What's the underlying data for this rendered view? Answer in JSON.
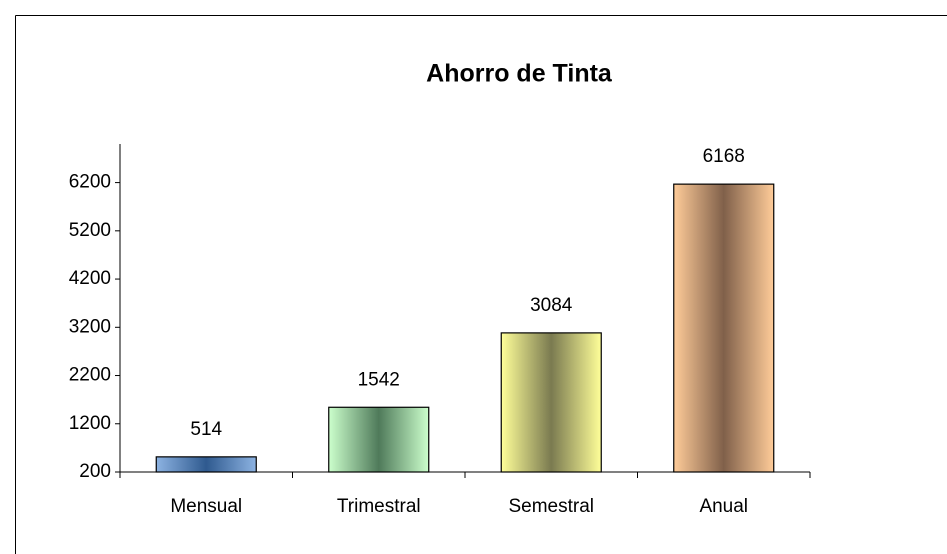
{
  "chart_data": {
    "type": "bar",
    "title": "Ahorro de Tinta",
    "categories": [
      "Mensual",
      "Trimestral",
      "Semestral",
      "Anual"
    ],
    "values": [
      514,
      1542,
      3084,
      6168
    ],
    "colors": [
      "#8db3e2",
      "#ccffcc",
      "#ffff99",
      "#ffcc99"
    ],
    "center_colors": [
      "#2f5a8f",
      "#4f7a5a",
      "#7a7a50",
      "#80604a"
    ],
    "ylim": [
      200,
      7000
    ],
    "yticks": [
      200,
      1200,
      2200,
      3200,
      4200,
      5200,
      6200
    ],
    "grid": false
  }
}
